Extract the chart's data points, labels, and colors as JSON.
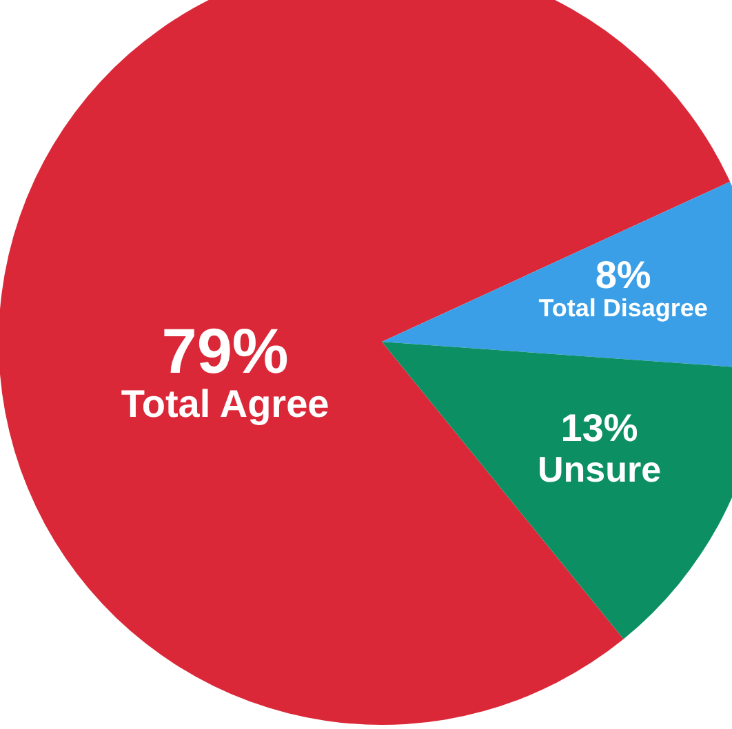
{
  "chart_data": {
    "type": "pie",
    "categories": [
      "Total Agree",
      "Total Disagree",
      "Unsure"
    ],
    "values": [
      79,
      8,
      13
    ],
    "colors": [
      "#da2838",
      "#3a9fe6",
      "#0b8f63"
    ],
    "value_labels": [
      "79%",
      "8%",
      "13%"
    ]
  }
}
